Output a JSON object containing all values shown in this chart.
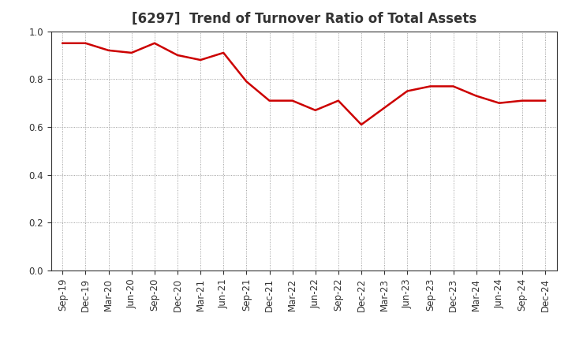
{
  "title": "[6297]  Trend of Turnover Ratio of Total Assets",
  "x_labels": [
    "Sep-19",
    "Dec-19",
    "Mar-20",
    "Jun-20",
    "Sep-20",
    "Dec-20",
    "Mar-21",
    "Jun-21",
    "Sep-21",
    "Dec-21",
    "Mar-22",
    "Jun-22",
    "Sep-22",
    "Dec-22",
    "Mar-23",
    "Jun-23",
    "Sep-23",
    "Dec-23",
    "Mar-24",
    "Jun-24",
    "Sep-24",
    "Dec-24"
  ],
  "y_values": [
    0.95,
    0.95,
    0.92,
    0.91,
    0.95,
    0.9,
    0.88,
    0.91,
    0.79,
    0.71,
    0.71,
    0.67,
    0.71,
    0.61,
    0.68,
    0.75,
    0.77,
    0.77,
    0.73,
    0.7,
    0.71,
    0.71
  ],
  "line_color": "#cc0000",
  "line_width": 1.8,
  "ylim": [
    0.0,
    1.0
  ],
  "yticks": [
    0.0,
    0.2,
    0.4,
    0.6,
    0.8,
    1.0
  ],
  "grid_color": "#888888",
  "grid_style": "dotted",
  "background_color": "#ffffff",
  "plot_bg_color": "#ffffff",
  "title_fontsize": 12,
  "tick_fontsize": 8.5,
  "spine_color": "#333333"
}
